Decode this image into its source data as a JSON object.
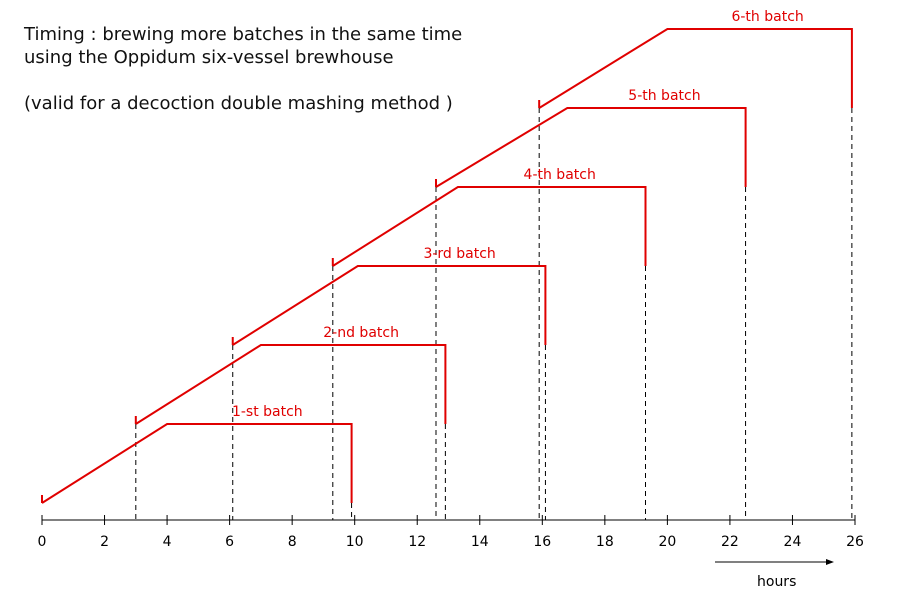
{
  "title_line1": "Timing : brewing more batches in the same time",
  "title_line2": "using the Oppidum six-vessel brewhouse",
  "subtitle": "(valid for a decoction double mashing method )",
  "chart_data": {
    "type": "line",
    "xlabel": "hours",
    "xlim": [
      0,
      26
    ],
    "x_ticks": [
      0,
      2,
      4,
      6,
      8,
      10,
      12,
      14,
      16,
      18,
      20,
      22,
      24,
      26
    ],
    "series": [
      {
        "name": "1-st batch",
        "x": [
          0,
          4,
          9.9,
          9.9
        ],
        "y": [
          0,
          1,
          1,
          0
        ]
      },
      {
        "name": "2-nd batch",
        "x": [
          3,
          7,
          12.9,
          12.9
        ],
        "y": [
          1,
          2,
          2,
          1
        ]
      },
      {
        "name": "3-rd batch",
        "x": [
          6.1,
          10.1,
          16.1,
          16.1
        ],
        "y": [
          2,
          3,
          3,
          2
        ]
      },
      {
        "name": "4-th batch",
        "x": [
          9.3,
          13.3,
          19.3,
          19.3
        ],
        "y": [
          3,
          4,
          4,
          3
        ]
      },
      {
        "name": "5-th batch",
        "x": [
          12.6,
          16.8,
          22.5,
          22.5
        ],
        "y": [
          4,
          5,
          5,
          4
        ]
      },
      {
        "name": "6-th batch",
        "x": [
          15.9,
          20,
          25.9,
          25.9
        ],
        "y": [
          5,
          6,
          6,
          5
        ]
      }
    ],
    "dashed_verticals_x": [
      3,
      6.1,
      9.3,
      9.9,
      12.6,
      12.9,
      15.9,
      16.1,
      19.3,
      22.5,
      25.9
    ]
  }
}
